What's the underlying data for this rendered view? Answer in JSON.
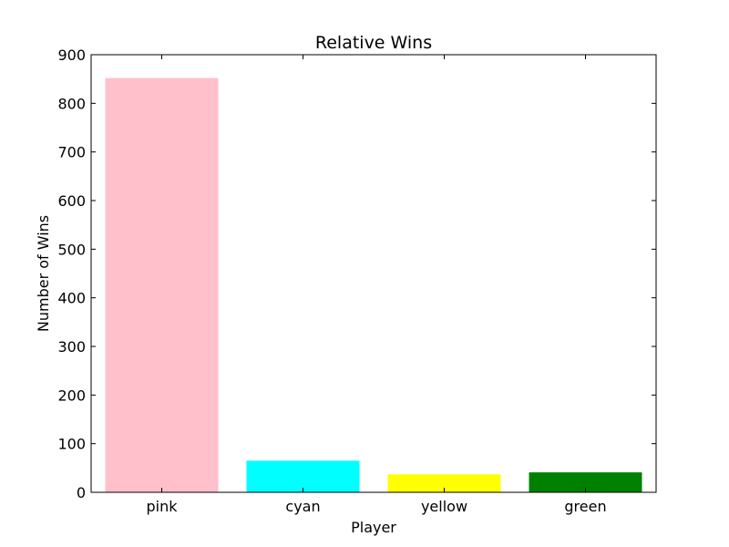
{
  "chart_data": {
    "type": "bar",
    "title": "Relative Wins",
    "xlabel": "Player",
    "ylabel": "Number of Wins",
    "categories": [
      "pink",
      "cyan",
      "yellow",
      "green"
    ],
    "values": [
      852,
      65,
      37,
      41
    ],
    "colors": [
      "#ffc0cb",
      "#00ffff",
      "#ffff00",
      "#008000"
    ],
    "ylim": [
      0,
      900
    ],
    "yticks": [
      "0",
      "100",
      "200",
      "300",
      "400",
      "500",
      "600",
      "700",
      "800",
      "900"
    ],
    "grid": false,
    "legend": "none"
  }
}
